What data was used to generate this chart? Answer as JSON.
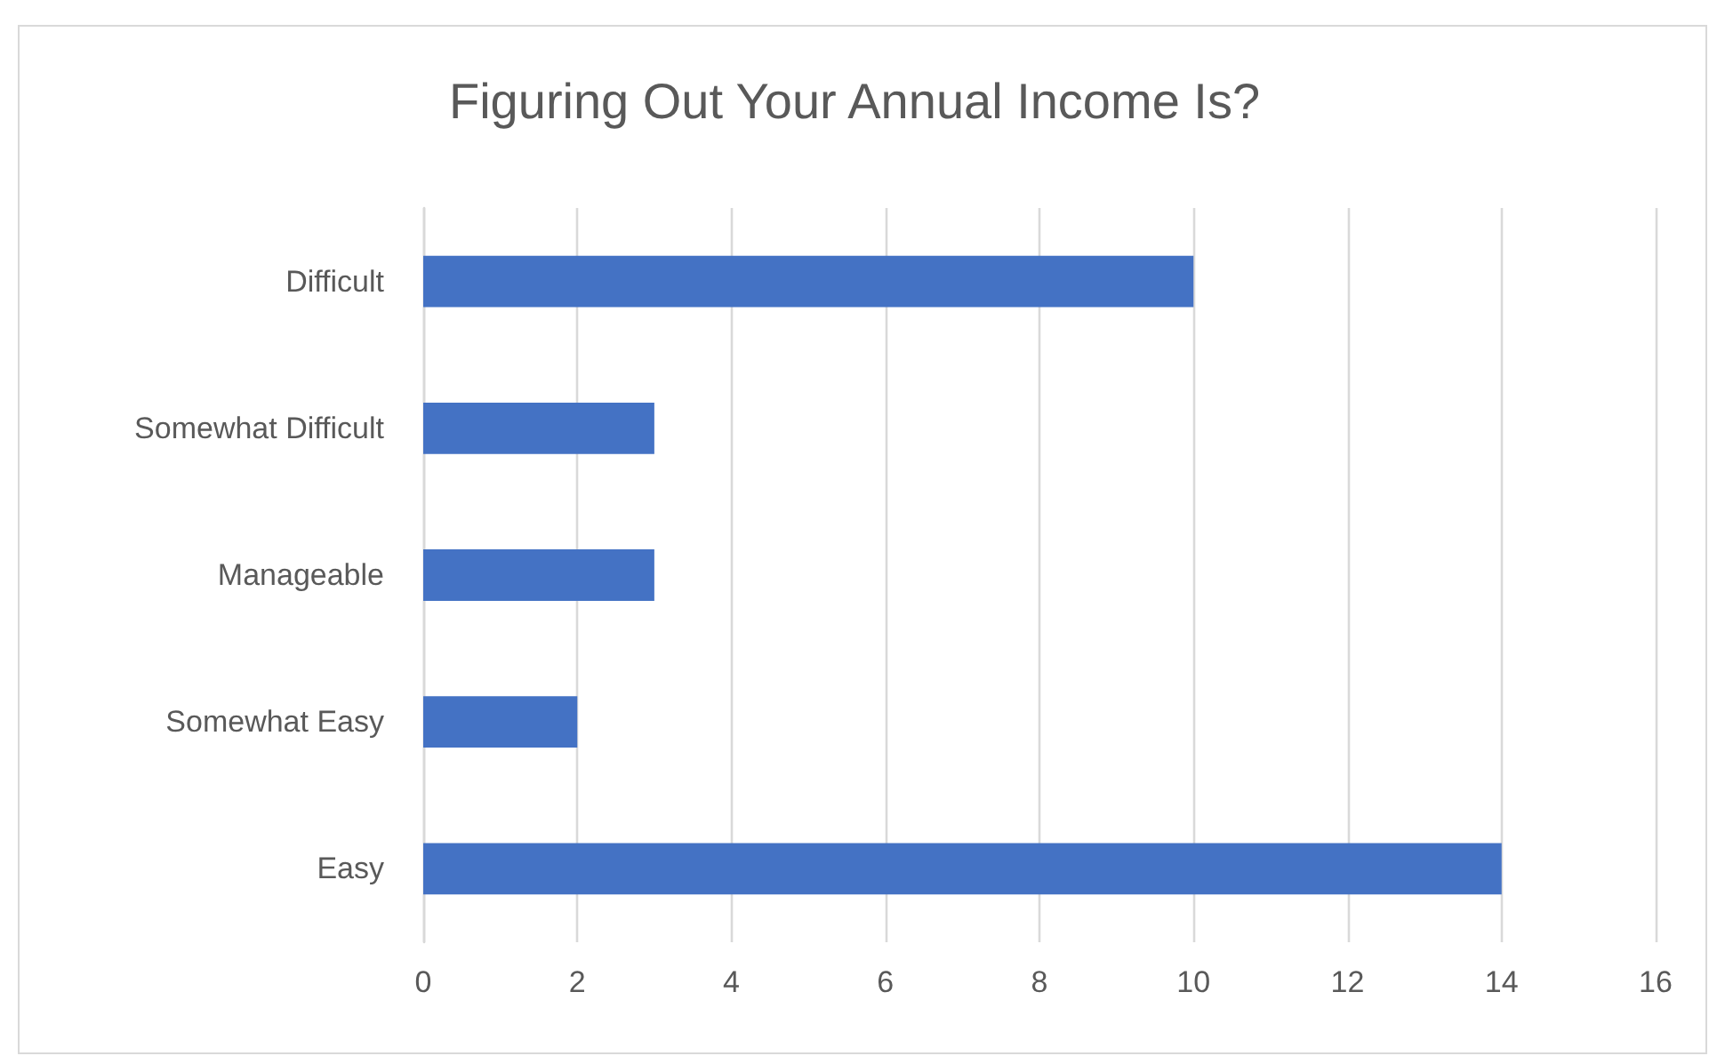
{
  "chart_data": {
    "type": "bar",
    "orientation": "horizontal",
    "title": "Figuring Out Your Annual Income Is?",
    "categories": [
      "Difficult",
      "Somewhat Difficult",
      "Manageable",
      "Somewhat Easy",
      "Easy"
    ],
    "values": [
      10,
      3,
      3,
      2,
      14
    ],
    "color": "#4472c4",
    "xlim": [
      0,
      16
    ],
    "xticks": [
      0,
      2,
      4,
      6,
      8,
      10,
      12,
      14,
      16
    ],
    "grid": "x"
  }
}
